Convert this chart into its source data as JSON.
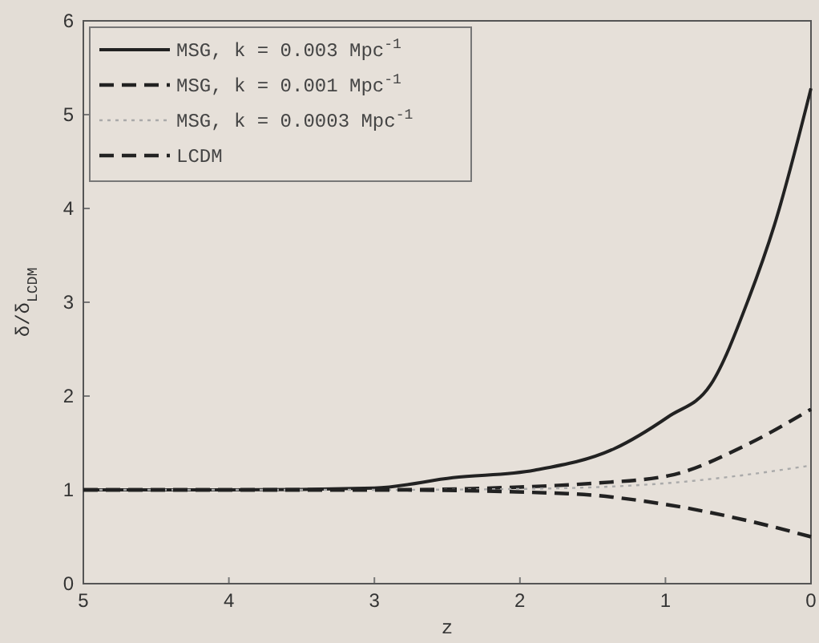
{
  "chart_data": {
    "type": "line",
    "xlabel": "z",
    "ylabel": "δ/δ$_{LCDM}$",
    "xlim": [
      5,
      0
    ],
    "xticks": [
      5,
      4,
      3,
      2,
      1,
      0
    ],
    "ylim": [
      0,
      6
    ],
    "yticks": [
      0,
      1,
      2,
      3,
      4,
      5,
      6
    ],
    "legend": "top left",
    "grid": false,
    "series": [
      {
        "name": "MSG, k = 0.003 Mpc$^{-1}$",
        "color": "#222222",
        "line_style": "solid",
        "x": [
          5,
          4,
          3,
          2.46,
          1.9,
          1.35,
          0.98,
          0.69,
          0.43,
          0.25,
          0
        ],
        "values": [
          1.0,
          1.0,
          1.02,
          1.13,
          1.21,
          1.44,
          1.78,
          2.12,
          3.03,
          3.83,
          5.28
        ]
      },
      {
        "name": "MSG, k = 0.001 Mpc$^{-1}$",
        "color": "#222222",
        "line_style": "dashed",
        "x": [
          5,
          4,
          3,
          2,
          1.5,
          0.98,
          0.43,
          0
        ],
        "values": [
          1.0,
          1.0,
          1.0,
          1.03,
          1.07,
          1.15,
          1.49,
          1.86
        ]
      },
      {
        "name": "MSG, k = 0.0003 Mpc$^{-1}$",
        "color": "#aaaaaa",
        "line_style": "dotted",
        "x": [
          5,
          4,
          3,
          2,
          1,
          0.5,
          0
        ],
        "values": [
          1.0,
          1.0,
          1.0,
          1.01,
          1.07,
          1.15,
          1.26
        ]
      },
      {
        "name": "LCDM",
        "color": "#222222",
        "line_style": "dashed",
        "x": [
          5,
          4,
          3,
          1.67,
          0.98,
          0.43,
          0
        ],
        "values": [
          1.0,
          1.0,
          1.0,
          0.96,
          0.84,
          0.67,
          0.5
        ]
      }
    ]
  }
}
